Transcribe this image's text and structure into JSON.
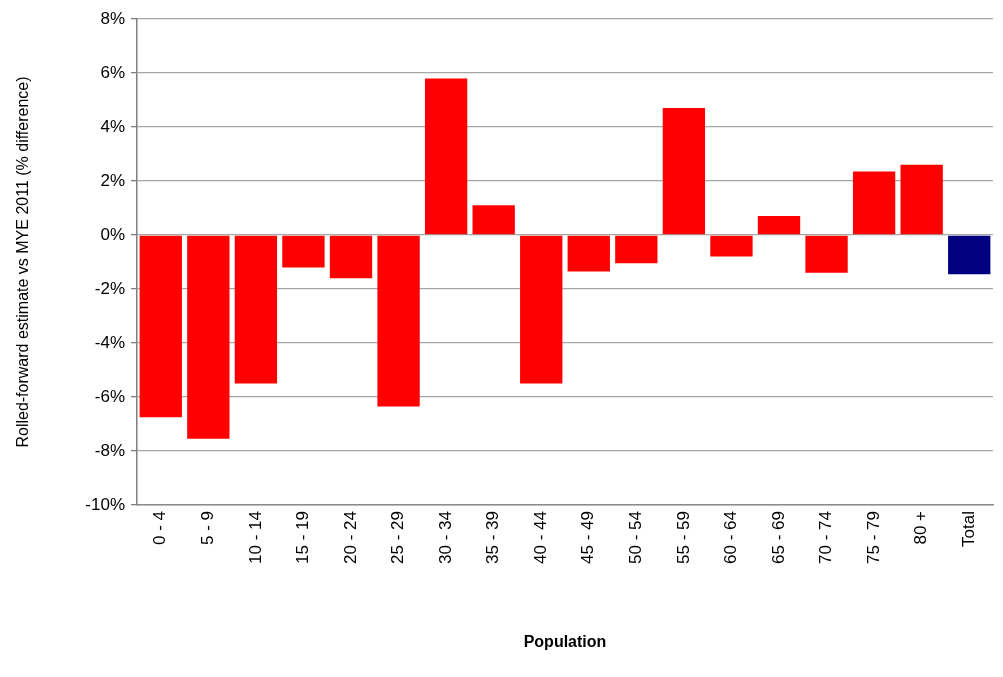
{
  "chart_data": {
    "type": "bar",
    "xlabel": "Population",
    "ylabel": "Rolled-forward estimate vs MYE 2011 (% difference)",
    "categories": [
      "0 - 4",
      "5 - 9",
      "10 - 14",
      "15 - 19",
      "20 - 24",
      "25 - 29",
      "30 - 34",
      "35 - 39",
      "40 - 44",
      "45 - 49",
      "50 - 54",
      "55 - 59",
      "60 - 64",
      "65 - 69",
      "70 - 74",
      "75 - 79",
      "80 +",
      "Total"
    ],
    "values": [
      -6.75,
      -7.55,
      -5.5,
      -1.2,
      -1.6,
      -6.35,
      5.8,
      1.1,
      -5.5,
      -1.35,
      -1.05,
      4.7,
      -0.8,
      0.7,
      -1.4,
      2.35,
      2.6,
      -1.45
    ],
    "colors": [
      "#ff0000",
      "#ff0000",
      "#ff0000",
      "#ff0000",
      "#ff0000",
      "#ff0000",
      "#ff0000",
      "#ff0000",
      "#ff0000",
      "#ff0000",
      "#ff0000",
      "#ff0000",
      "#ff0000",
      "#ff0000",
      "#ff0000",
      "#ff0000",
      "#ff0000",
      "#000080"
    ],
    "ylim": [
      -10,
      8
    ],
    "yticks": [
      {
        "value": -10,
        "label": "-10%"
      },
      {
        "value": -8,
        "label": "-8%"
      },
      {
        "value": -6,
        "label": "-6%"
      },
      {
        "value": -4,
        "label": "-4%"
      },
      {
        "value": -2,
        "label": "-2%"
      },
      {
        "value": 0,
        "label": "0%"
      },
      {
        "value": 2,
        "label": "2%"
      },
      {
        "value": 4,
        "label": "4%"
      },
      {
        "value": 6,
        "label": "6%"
      },
      {
        "value": 8,
        "label": "8%"
      }
    ],
    "grid": "y",
    "legend": false
  }
}
